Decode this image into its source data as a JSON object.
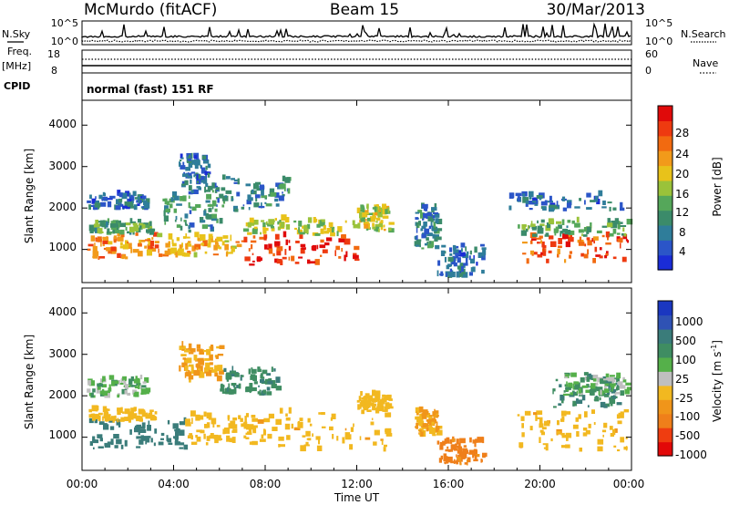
{
  "header": {
    "station": "McMurdo (fitACF)",
    "beam": "Beam 15",
    "date": "30/Mar/2013"
  },
  "strip_labels": {
    "nsky": "N.Sky",
    "nsearch": "N.Search",
    "freq": "Freq.",
    "freq_unit": "[MHz]",
    "nave": "Nave",
    "cpid": "CPID",
    "noise_ticks_left": [
      "10^5",
      "10^0"
    ],
    "noise_ticks_right": [
      "10^5",
      "10^0"
    ],
    "freq_ticks": [
      "18",
      "8"
    ],
    "nave_ticks": [
      "60",
      "0"
    ]
  },
  "cpid_text": "normal (fast) 151 RF",
  "axis": {
    "xlabel": "Time UT",
    "xticks": [
      "00:00",
      "04:00",
      "08:00",
      "12:00",
      "16:00",
      "20:00",
      "00:00"
    ],
    "ylabel": "Slant Range [km]",
    "yticks": [
      "1000",
      "2000",
      "3000",
      "4000"
    ]
  },
  "colors": {
    "power": [
      "#1a2cd6",
      "#2b55c8",
      "#2f7d9a",
      "#3b8b6a",
      "#55a75a",
      "#9ac23a",
      "#e8c21a",
      "#f29a1a",
      "#f26a10",
      "#ee3a10",
      "#e00a0a"
    ],
    "velocity": [
      "#1a37c0",
      "#2f52b4",
      "#3a7c7a",
      "#3f8d62",
      "#55b04a",
      "#bfbfbf",
      "#f2b820",
      "#f0951a",
      "#ef7f1a",
      "#ef3d10",
      "#e20808"
    ]
  },
  "power_colorbar": {
    "label": "Power [dB]",
    "ticks": [
      "28",
      "24",
      "20",
      "16",
      "12",
      "8",
      "4"
    ]
  },
  "velocity_colorbar": {
    "label_main": "Velocity",
    "label_unit": "[m s",
    "label_exp": "-1",
    "label_close": "]",
    "ticks": [
      "1000",
      "500",
      "100",
      "25",
      "-25",
      "-100",
      "-500",
      "-1000"
    ]
  },
  "chart_data": [
    {
      "type": "heatmap",
      "title": "Power",
      "x_units": "hours UT",
      "xlim": [
        0,
        24
      ],
      "ylim": [
        200,
        4600
      ],
      "colorbar_range_dB": [
        0,
        30
      ],
      "clusters": [
        {
          "t0": 0.2,
          "t1": 3.2,
          "r0": 750,
          "r1": 1350,
          "value": 22
        },
        {
          "t0": 0.3,
          "t1": 3.0,
          "r0": 1350,
          "r1": 1650,
          "value": 12
        },
        {
          "t0": 0.2,
          "t1": 2.8,
          "r0": 1950,
          "r1": 2300,
          "value": 6
        },
        {
          "t0": 3.2,
          "t1": 7.0,
          "r0": 800,
          "r1": 1300,
          "value": 20
        },
        {
          "t0": 3.5,
          "t1": 6.0,
          "r0": 1400,
          "r1": 2400,
          "value": 9
        },
        {
          "t0": 4.2,
          "t1": 5.5,
          "r0": 2400,
          "r1": 3200,
          "value": 6
        },
        {
          "t0": 7.0,
          "t1": 12.0,
          "r0": 600,
          "r1": 1300,
          "value": 26
        },
        {
          "t0": 7.0,
          "t1": 12.0,
          "r0": 1300,
          "r1": 1700,
          "value": 15
        },
        {
          "t0": 12.0,
          "t1": 13.4,
          "r0": 1400,
          "r1": 2000,
          "value": 16
        },
        {
          "t0": 5.5,
          "t1": 9.0,
          "r0": 1900,
          "r1": 2700,
          "value": 8
        },
        {
          "t0": 14.5,
          "t1": 15.5,
          "r0": 1000,
          "r1": 2000,
          "value": 8
        },
        {
          "t0": 15.5,
          "t1": 17.5,
          "r0": 300,
          "r1": 1100,
          "value": 6
        },
        {
          "t0": 19.0,
          "t1": 23.8,
          "r0": 650,
          "r1": 1300,
          "value": 25
        },
        {
          "t0": 19.0,
          "t1": 23.8,
          "r0": 1300,
          "r1": 1650,
          "value": 12
        },
        {
          "t0": 18.5,
          "t1": 23.5,
          "r0": 1900,
          "r1": 2300,
          "value": 6
        }
      ]
    },
    {
      "type": "heatmap",
      "title": "Velocity",
      "x_units": "hours UT",
      "xlim": [
        0,
        24
      ],
      "ylim": [
        200,
        4600
      ],
      "colorbar_levels_m_per_s": [
        1000,
        500,
        100,
        25,
        -25,
        -100,
        -500,
        -1000
      ],
      "clusters": [
        {
          "t0": 0.2,
          "t1": 4.5,
          "r0": 700,
          "r1": 1350,
          "value": 150
        },
        {
          "t0": 0.2,
          "t1": 3.2,
          "r0": 1350,
          "r1": 1650,
          "value": -150
        },
        {
          "t0": 0.2,
          "t1": 2.8,
          "r0": 1950,
          "r1": 2400,
          "value": 0
        },
        {
          "t0": 4.5,
          "t1": 7.5,
          "r0": 800,
          "r1": 1500,
          "value": -200
        },
        {
          "t0": 4.2,
          "t1": 6.0,
          "r0": 2300,
          "r1": 3200,
          "value": -300
        },
        {
          "t0": 6.0,
          "t1": 8.5,
          "r0": 2000,
          "r1": 2600,
          "value": 50
        },
        {
          "t0": 7.5,
          "t1": 13.4,
          "r0": 650,
          "r1": 1600,
          "value": -250
        },
        {
          "t0": 12.0,
          "t1": 13.4,
          "r0": 1600,
          "r1": 2000,
          "value": -200
        },
        {
          "t0": 14.5,
          "t1": 15.5,
          "r0": 1000,
          "r1": 1600,
          "value": -300
        },
        {
          "t0": 15.5,
          "t1": 17.5,
          "r0": 300,
          "r1": 900,
          "value": -900
        },
        {
          "t0": 19.0,
          "t1": 24.0,
          "r0": 650,
          "r1": 1600,
          "value": -250
        },
        {
          "t0": 20.5,
          "t1": 23.5,
          "r0": 1700,
          "r1": 2400,
          "value": 60
        },
        {
          "t0": 21.0,
          "t1": 23.8,
          "r0": 2000,
          "r1": 2500,
          "value": 0
        }
      ]
    }
  ]
}
